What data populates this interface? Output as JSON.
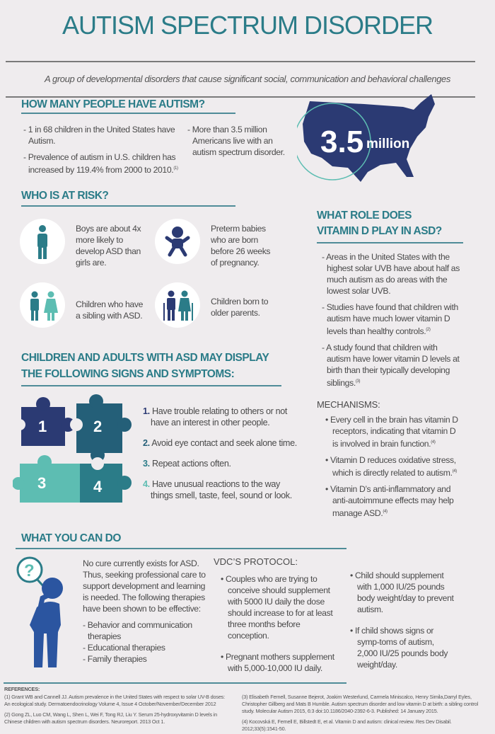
{
  "title": "AUTISM SPECTRUM DISORDER",
  "subtitle": "A group of developmental disorders that cause significant social, communication and behavioral challenges",
  "colors": {
    "teal": "#2b7c88",
    "navy": "#2b3a73",
    "light_teal": "#5dbdb2",
    "dark_teal": "#245f78",
    "background": "#efecee"
  },
  "how_many": {
    "heading": "HOW MANY PEOPLE HAVE AUTISM?",
    "col1": [
      "- 1 in 68 children in the United States have Autism.",
      "- Prevalence of autism in U.S. children has increased by 119.4% from 2000 to 2010."
    ],
    "col1_sup": "(1)",
    "col2": [
      "- More than 3.5 million Americans live with an autism spectrum disorder."
    ],
    "map_number": "3.5",
    "map_unit": "million",
    "map_icon": "usa-map-icon"
  },
  "risk": {
    "heading": "WHO IS AT RISK?",
    "items": [
      {
        "icon": "boy-icon",
        "text": "Boys are about 4x more likely to develop ASD than girls are."
      },
      {
        "icon": "baby-icon",
        "text": "Preterm babies who are born before 26 weeks of pregnancy."
      },
      {
        "icon": "siblings-icon",
        "text": "Children who have a sibling with ASD."
      },
      {
        "icon": "elderly-parents-icon",
        "text": "Children born to older parents."
      }
    ]
  },
  "signs": {
    "heading_line1": "CHILDREN AND ADULTS WITH ASD MAY DISPLAY",
    "heading_line2": "THE FOLLOWING SIGNS AND SYMPTOMS:",
    "puzzle_labels": [
      "1",
      "2",
      "3",
      "4"
    ],
    "items": [
      {
        "num": "1.",
        "text": "Have trouble relating to others or not have an interest in other people."
      },
      {
        "num": "2.",
        "text": "Avoid eye contact and seek alone time."
      },
      {
        "num": "3.",
        "text": "Repeat actions often."
      },
      {
        "num": "4.",
        "text": "Have unusual reactions to the way things smell, taste, feel, sound or look."
      }
    ]
  },
  "vitamin": {
    "heading_line1": "WHAT ROLE DOES",
    "heading_line2": "VITAMIN D PLAY IN ASD?",
    "items": [
      {
        "text": "- Areas in the United States with the highest solar UVB have about half as much autism as do areas with the lowest solar UVB.",
        "sup": ""
      },
      {
        "text": "- Studies have found that children with autism have much lower vitamin D levels than healthy controls.",
        "sup": "(2)"
      },
      {
        "text": "- A study found that children with autism have lower vitamin D levels at birth than their typically developing siblings.",
        "sup": "(3)"
      }
    ],
    "mechanisms_heading": "MECHANISMS:",
    "mechanisms": [
      {
        "text": "Every cell in the brain has vitamin D receptors, indicating that vitamin D is involved in brain function.",
        "sup": "(4)"
      },
      {
        "text": "Vitamin D reduces oxidative stress, which is directly related to autism.",
        "sup": "(4)"
      },
      {
        "text": "Vitamin D’s anti-inflammatory and anti-autoimmune effects may help manage ASD.",
        "sup": "(4)"
      }
    ]
  },
  "what_you_can_do": {
    "heading": "WHAT YOU CAN DO",
    "intro": "No cure currently exists for ASD. Thus, seeking professional care to support development and learning is needed. The following therapies have been shown to be effective:",
    "therapies": [
      "- Behavior and communication therapies",
      "- Educational therapies",
      "- Family therapies"
    ],
    "protocol_heading": "VDC’S PROTOCOL:",
    "protocol_col1": [
      "Couples who are trying to conceive should supplement with 5000 IU daily the dose should increase to for at least three months before conception.",
      "Pregnant mothers supplement with 5,000-10,000 IU daily."
    ],
    "protocol_col2": [
      "Child should supplement with 1,000 IU/25 pounds body weight/day to prevent autism.",
      "If child shows signs or symp-toms of autism, 2,000 IU/25 pounds body weight/day."
    ]
  },
  "references": {
    "heading": "REFERENCES:",
    "items": [
      "(1) Grant WB and Cannell JJ. Autism prevalence in the United States with respect to solar UV-B doses: An ecological study. Dermatoendocrinology Volume 4, Issue 4  October/November/December 2012",
      "(2) Gong ZL, Luo CM, Wang L, Shen L, Wei F, Tong RJ, Liu Y. Serum 25-hydroxyvitamin D levels in Chinese children with autism spectrum disorders. Neuroreport. 2013 Oct 1.",
      "(3) Elisabeth Fernell, Susanne Bejerot, Joakim Westerlund, Carmela Miniscalco, Henry Simila,Darryl Eyles, Christopher Gillberg and Mats B Humble. Autism spectrum disorder and low vitamin D at birth: a sibling control study. Molecular Autism 2015, 6:3  doi:10.1186/2040-2392-6-3. Published: 14 January 2015.",
      "(4) Kocovská E, Fernell E, Billstedt E, et al. Vitamin D and autism: clinical review. Res Dev Disabil. 2012;33(5):1541-50."
    ]
  }
}
